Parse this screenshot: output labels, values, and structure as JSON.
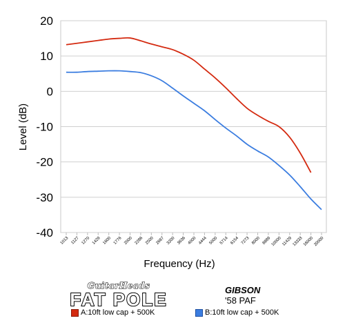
{
  "chart_data": {
    "type": "line",
    "xlabel": "Frequency (Hz)",
    "ylabel": "Level (dB)",
    "ylim": [
      -40,
      20
    ],
    "yticks": [
      20,
      10,
      0,
      -10,
      -20,
      -30,
      -40
    ],
    "grid": "horizontal",
    "categories": [
      "1013",
      "1127",
      "1270",
      "1429",
      "1600",
      "1776",
      "2000",
      "2286",
      "2500",
      "2667",
      "3200",
      "3636",
      "4000",
      "4444",
      "5000",
      "5714",
      "6154",
      "7273",
      "8000",
      "8889",
      "10000",
      "11429",
      "13333",
      "16000",
      "20000"
    ],
    "series": [
      {
        "name": "A:10ft low cap + 500K",
        "color": "#d42a10",
        "values": [
          13.2,
          13.6,
          14.0,
          14.4,
          14.8,
          15.0,
          15.1,
          14.3,
          13.4,
          12.6,
          11.8,
          10.5,
          8.8,
          6.3,
          3.8,
          1.0,
          -2.0,
          -4.8,
          -6.8,
          -8.5,
          -10.0,
          -13.0,
          -17.5,
          -23.0,
          null
        ]
      },
      {
        "name": "B:10ft low cap + 500K",
        "color": "#3b7de0",
        "values": [
          5.4,
          5.4,
          5.6,
          5.7,
          5.8,
          5.8,
          5.6,
          5.3,
          4.4,
          3.0,
          0.9,
          -1.3,
          -3.4,
          -5.5,
          -8.0,
          -10.4,
          -12.6,
          -15.0,
          -16.9,
          -18.6,
          -21.0,
          -23.7,
          -27.0,
          -30.5,
          -33.5
        ]
      }
    ]
  },
  "branding": {
    "small": "GuitarHeads",
    "big": "FAT POLE",
    "manufacturer": "GIBSON",
    "model": "'58 PAF"
  }
}
